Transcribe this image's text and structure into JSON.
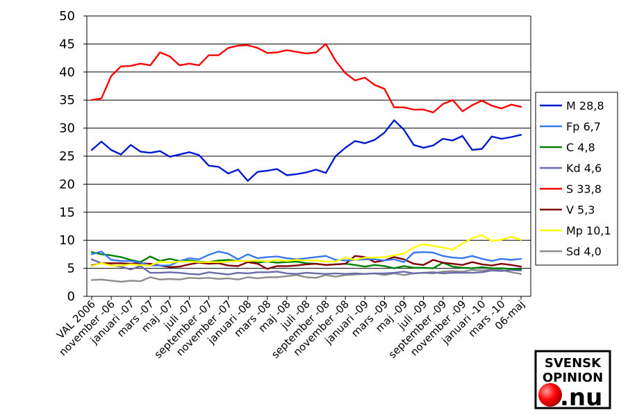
{
  "chart_data": {
    "type": "line",
    "title": "",
    "xlabel": "",
    "ylabel": "",
    "ylim": [
      0,
      50
    ],
    "yticks": [
      0,
      5,
      10,
      15,
      20,
      25,
      30,
      35,
      40,
      45,
      50
    ],
    "grid": "horizontal",
    "legend_position": "right",
    "x_tick_labels": [
      "VAL 2006",
      "november -06",
      "januari -07",
      "mars -07",
      "maj -07",
      "juli -07",
      "september -07",
      "november -07",
      "januari -08",
      "mars -08",
      "maj -08",
      "juli -08",
      "september -08",
      "november -08",
      "januari -09",
      "mars -09",
      "maj -09",
      "juli -09",
      "september -09",
      "november -09",
      "januari -10",
      "mars -10",
      "06-maj"
    ],
    "series": [
      {
        "name": "M 28,8",
        "color": "#0018d0",
        "values": [
          26.1,
          27.6,
          26.1,
          25.3,
          27.0,
          25.8,
          25.6,
          25.9,
          24.9,
          25.3,
          25.7,
          25.2,
          23.3,
          23.1,
          21.9,
          22.6,
          20.6,
          22.2,
          22.4,
          22.7,
          21.6,
          21.8,
          22.1,
          22.6,
          22.0,
          25.0,
          26.5,
          27.7,
          27.3,
          27.9,
          29.2,
          31.4,
          29.7,
          27.0,
          26.5,
          26.9,
          28.1,
          27.8,
          28.6,
          26.1,
          26.3,
          28.5,
          28.1,
          28.4,
          28.8
        ]
      },
      {
        "name": "Fp 6,7",
        "color": "#3a78f0",
        "values": [
          7.5,
          8.0,
          6.5,
          6.3,
          6.3,
          6.0,
          5.5,
          5.5,
          5.5,
          6.3,
          6.8,
          6.6,
          7.4,
          8.0,
          7.6,
          6.6,
          7.5,
          6.8,
          7.0,
          7.1,
          6.8,
          6.6,
          6.8,
          7.0,
          7.2,
          6.5,
          6.4,
          6.5,
          6.6,
          6.6,
          6.4,
          6.6,
          6.1,
          7.8,
          7.9,
          7.8,
          7.2,
          6.9,
          6.8,
          7.2,
          6.7,
          6.3,
          6.7,
          6.5,
          6.7
        ]
      },
      {
        "name": "C 4,8",
        "color": "#008000",
        "values": [
          7.9,
          7.5,
          7.3,
          7.0,
          6.5,
          6.1,
          7.1,
          6.3,
          6.7,
          6.3,
          6.4,
          6.2,
          6.1,
          6.4,
          6.5,
          6.3,
          6.3,
          6.0,
          6.2,
          6.0,
          6.1,
          6.2,
          5.9,
          5.8,
          5.6,
          5.7,
          5.8,
          5.6,
          5.3,
          5.6,
          5.4,
          5.0,
          5.4,
          5.1,
          5.1,
          5.0,
          6.0,
          5.3,
          5.1,
          5.0,
          5.2,
          5.0,
          5.0,
          4.9,
          4.8
        ]
      },
      {
        "name": "Kd 4,6",
        "color": "#6a6aaa",
        "values": [
          6.6,
          5.9,
          5.6,
          5.3,
          4.8,
          5.4,
          4.2,
          4.2,
          4.3,
          4.2,
          4.0,
          3.9,
          4.3,
          4.1,
          3.9,
          4.2,
          4.1,
          4.3,
          4.3,
          4.4,
          4.1,
          4.0,
          4.2,
          4.1,
          4.0,
          4.1,
          4.0,
          4.1,
          4.0,
          4.1,
          4.1,
          4.2,
          4.4,
          4.1,
          4.2,
          4.3,
          4.1,
          4.2,
          4.2,
          4.2,
          4.3,
          4.6,
          4.5,
          4.7,
          4.6
        ]
      },
      {
        "name": "S 33,8",
        "color": "#ff0000",
        "values": [
          35.0,
          35.3,
          39.3,
          41.0,
          41.1,
          41.5,
          41.2,
          43.5,
          42.8,
          41.2,
          41.5,
          41.2,
          43.0,
          43.0,
          44.3,
          44.7,
          44.8,
          44.3,
          43.4,
          43.5,
          43.9,
          43.6,
          43.3,
          43.5,
          45.0,
          42.0,
          39.8,
          38.5,
          39.0,
          37.7,
          37.0,
          33.7,
          33.7,
          33.3,
          33.3,
          32.8,
          34.3,
          35.0,
          33.0,
          34.1,
          34.9,
          34.0,
          33.5,
          34.2,
          33.8
        ]
      },
      {
        "name": "V 5,3",
        "color": "#800000",
        "values": [
          5.5,
          5.9,
          5.9,
          5.9,
          5.8,
          5.9,
          5.8,
          5.5,
          5.2,
          5.3,
          5.7,
          6.0,
          5.8,
          5.9,
          5.5,
          5.4,
          6.1,
          5.8,
          4.9,
          5.4,
          5.4,
          5.5,
          5.7,
          5.8,
          5.6,
          5.7,
          5.8,
          7.2,
          7.0,
          6.1,
          6.4,
          7.0,
          6.6,
          5.8,
          5.6,
          6.5,
          6.0,
          5.8,
          5.6,
          6.1,
          5.7,
          5.5,
          5.8,
          5.6,
          5.3
        ]
      },
      {
        "name": "Mp 10,1",
        "color": "#ffff00",
        "values": [
          5.4,
          5.9,
          5.5,
          5.5,
          5.7,
          5.6,
          5.5,
          6.2,
          6.0,
          6.2,
          6.2,
          6.1,
          6.1,
          6.1,
          6.2,
          6.3,
          6.3,
          6.4,
          6.2,
          6.5,
          6.3,
          6.5,
          6.4,
          6.4,
          6.2,
          6.2,
          6.9,
          6.5,
          6.9,
          6.9,
          7.0,
          7.3,
          7.6,
          8.7,
          9.3,
          9.0,
          8.7,
          8.3,
          9.4,
          10.4,
          10.9,
          9.9,
          10.1,
          10.6,
          10.1
        ]
      },
      {
        "name": "Sd 4,0",
        "color": "#8c8c8c",
        "values": [
          2.9,
          3.0,
          2.8,
          2.6,
          2.8,
          2.7,
          3.4,
          3.0,
          3.1,
          3.0,
          3.3,
          3.2,
          3.3,
          3.1,
          3.2,
          3.0,
          3.4,
          3.2,
          3.4,
          3.4,
          3.6,
          3.8,
          3.4,
          3.3,
          3.8,
          3.5,
          3.8,
          3.9,
          4.0,
          4.1,
          3.8,
          4.1,
          3.8,
          4.1,
          4.2,
          4.1,
          4.4,
          4.5,
          4.4,
          4.7,
          4.6,
          4.8,
          4.7,
          4.3,
          4.0
        ]
      }
    ]
  },
  "logo": {
    "line1": "SVENSK",
    "line2": "OPINION",
    "line3": ".nu",
    "accent_color": "#ff0000"
  }
}
